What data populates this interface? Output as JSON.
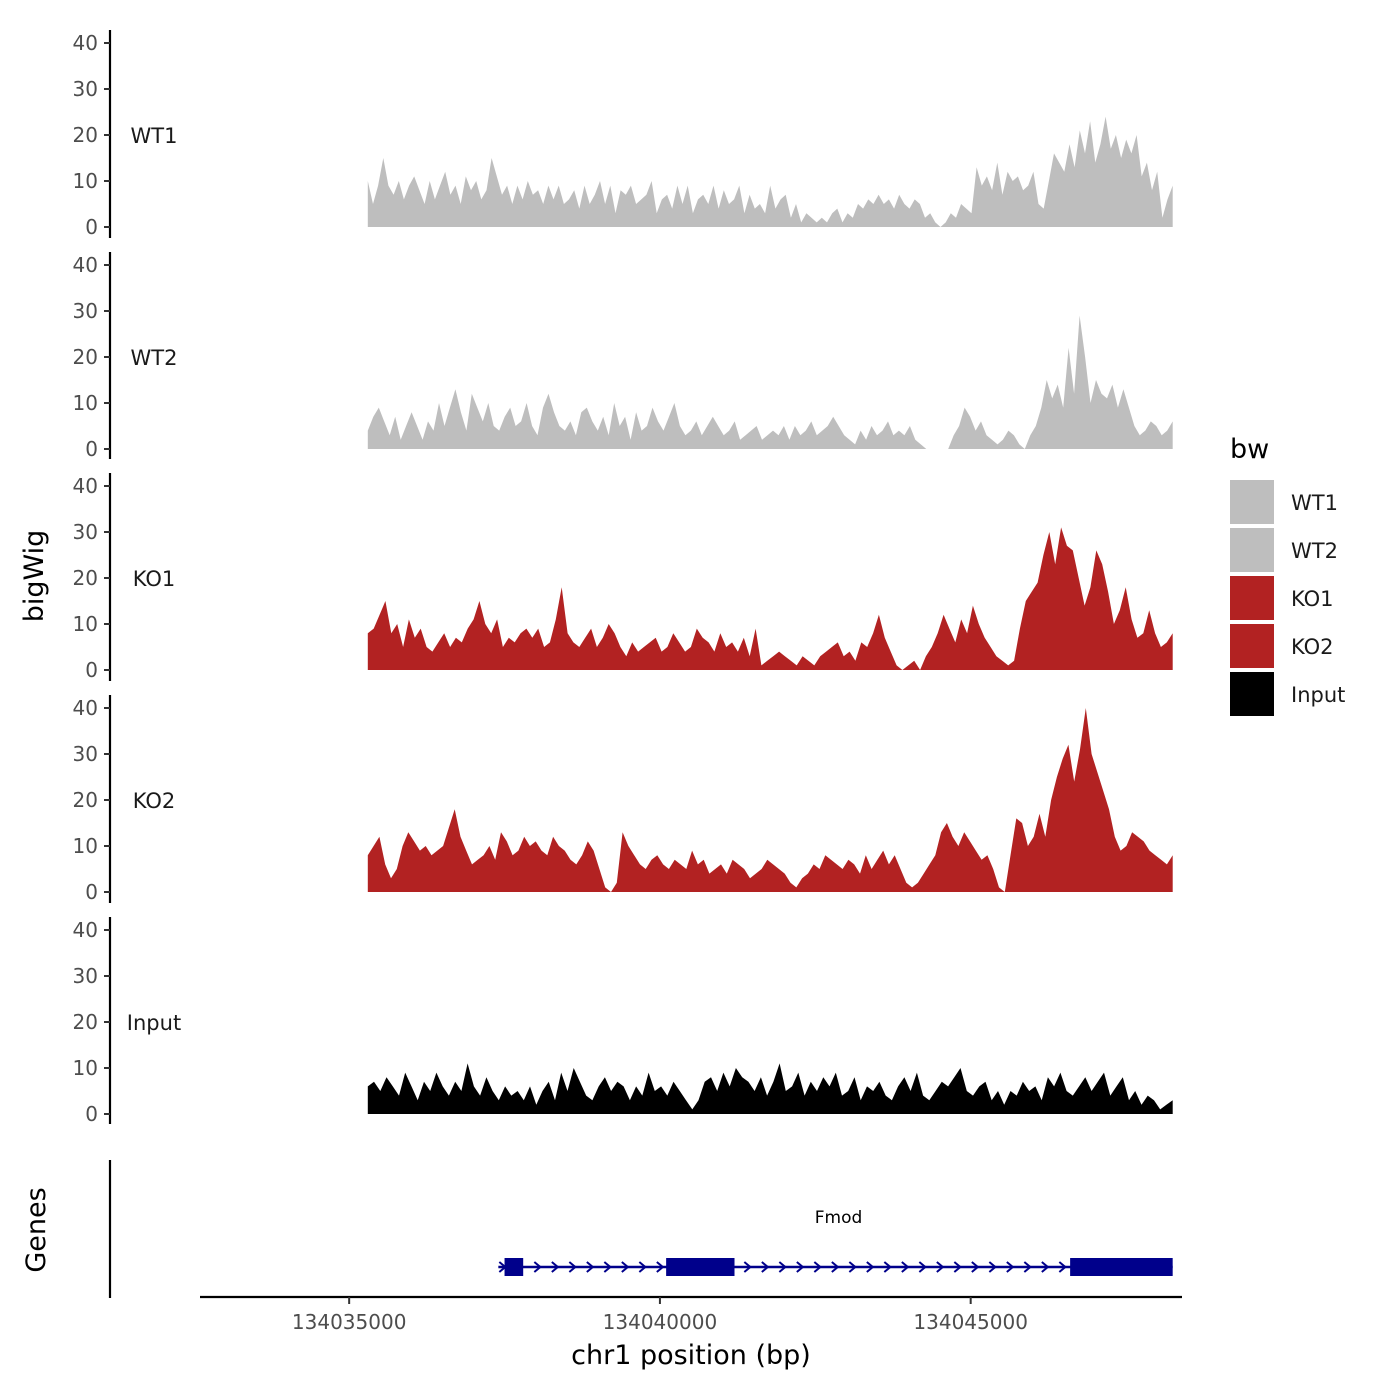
{
  "chart_data": {
    "type": "area",
    "chromosome": "chr1",
    "xlabel": "chr1 position (bp)",
    "ylabel_tracks": "bigWig",
    "ylabel_genes": "Genes",
    "xlim": [
      134032600,
      134048400
    ],
    "x_ticks": [
      134035000,
      134040000,
      134045000
    ],
    "x_tick_labels": [
      "134035000",
      "134040000",
      "134045000"
    ],
    "ylim": [
      0,
      41
    ],
    "y_ticks": [
      0,
      10,
      20,
      30,
      40
    ],
    "y_tick_labels": [
      "0",
      "10",
      "20",
      "30",
      "40"
    ],
    "legend_title": "bw",
    "legend": [
      {
        "label": "WT1",
        "color": "#bebebe"
      },
      {
        "label": "WT2",
        "color": "#bebebe"
      },
      {
        "label": "KO1",
        "color": "#b22222"
      },
      {
        "label": "KO2",
        "color": "#b22222"
      },
      {
        "label": "Input",
        "color": "#000000"
      }
    ],
    "series": [
      {
        "name": "WT1",
        "color": "#bebebe",
        "start": 134035300,
        "end": 134048250,
        "values": [
          10,
          5,
          9,
          15,
          9,
          7,
          10,
          6,
          9,
          11,
          8,
          5,
          10,
          6,
          9,
          12,
          7,
          9,
          5,
          11,
          8,
          10,
          6,
          8,
          15,
          11,
          7,
          9,
          5,
          9,
          6,
          10,
          7,
          8,
          5,
          9,
          6,
          9,
          5,
          6,
          8,
          4,
          9,
          5,
          7,
          10,
          5,
          9,
          3,
          8,
          7,
          9,
          5,
          6,
          7,
          10,
          3,
          6,
          7,
          4,
          9,
          5,
          9,
          3,
          6,
          7,
          5,
          9,
          4,
          8,
          5,
          6,
          9,
          3,
          7,
          4,
          5,
          3,
          9,
          4,
          6,
          7,
          2,
          5,
          1,
          3,
          2,
          1,
          2,
          1,
          3,
          4,
          1,
          3,
          2,
          5,
          4,
          6,
          5,
          7,
          5,
          6,
          4,
          7,
          5,
          4,
          6,
          5,
          2,
          3,
          1,
          0,
          1,
          3,
          2,
          5,
          4,
          3,
          13,
          9,
          11,
          8,
          14,
          7,
          12,
          10,
          11,
          8,
          9,
          12,
          5,
          4,
          10,
          16,
          14,
          12,
          18,
          13,
          21,
          16,
          23,
          14,
          18,
          24,
          17,
          20,
          15,
          19,
          16,
          20,
          11,
          14,
          8,
          12,
          2,
          6,
          9
        ]
      },
      {
        "name": "WT2",
        "color": "#bebebe",
        "start": 134035300,
        "end": 134048250,
        "values": [
          4,
          7,
          9,
          6,
          3,
          7,
          2,
          5,
          8,
          5,
          2,
          6,
          4,
          10,
          5,
          9,
          13,
          8,
          4,
          12,
          9,
          6,
          10,
          5,
          4,
          7,
          9,
          5,
          6,
          10,
          5,
          3,
          9,
          12,
          8,
          5,
          4,
          6,
          3,
          8,
          9,
          6,
          4,
          7,
          3,
          10,
          5,
          7,
          2,
          8,
          4,
          5,
          9,
          6,
          4,
          7,
          10,
          5,
          3,
          4,
          6,
          3,
          5,
          7,
          5,
          3,
          4,
          6,
          2,
          3,
          4,
          5,
          2,
          3,
          4,
          3,
          5,
          2,
          5,
          3,
          4,
          6,
          3,
          4,
          5,
          7,
          5,
          3,
          2,
          1,
          4,
          2,
          5,
          3,
          4,
          6,
          3,
          4,
          3,
          5,
          2,
          1,
          0,
          0,
          0,
          0,
          0,
          3,
          5,
          9,
          7,
          4,
          6,
          3,
          2,
          1,
          2,
          4,
          3,
          1,
          0,
          3,
          5,
          9,
          15,
          11,
          14,
          9,
          22,
          12,
          29,
          20,
          10,
          15,
          12,
          11,
          14,
          9,
          13,
          9,
          5,
          3,
          4,
          6,
          5,
          3,
          4,
          6
        ]
      },
      {
        "name": "KO1",
        "color": "#b22222",
        "start": 134035300,
        "end": 134048250,
        "values": [
          8,
          9,
          12,
          15,
          8,
          10,
          5,
          11,
          7,
          9,
          5,
          4,
          6,
          8,
          5,
          7,
          6,
          9,
          11,
          15,
          10,
          8,
          11,
          5,
          7,
          6,
          8,
          9,
          7,
          9,
          5,
          6,
          11,
          18,
          8,
          6,
          5,
          7,
          9,
          5,
          7,
          10,
          8,
          5,
          3,
          6,
          4,
          5,
          6,
          7,
          4,
          5,
          8,
          6,
          4,
          5,
          9,
          7,
          6,
          4,
          8,
          5,
          6,
          4,
          7,
          3,
          9,
          1,
          2,
          3,
          4,
          3,
          2,
          1,
          3,
          2,
          1,
          3,
          4,
          5,
          6,
          3,
          4,
          2,
          6,
          5,
          8,
          12,
          7,
          4,
          1,
          0,
          1,
          2,
          0,
          3,
          5,
          8,
          12,
          9,
          6,
          11,
          8,
          14,
          10,
          7,
          5,
          3,
          2,
          1,
          2,
          9,
          15,
          17,
          19,
          25,
          30,
          23,
          31,
          27,
          26,
          20,
          14,
          18,
          26,
          23,
          17,
          10,
          13,
          18,
          11,
          7,
          8,
          13,
          8,
          5,
          6,
          8
        ]
      },
      {
        "name": "KO2",
        "color": "#b22222",
        "start": 134035300,
        "end": 134048250,
        "values": [
          8,
          10,
          12,
          6,
          3,
          5,
          10,
          13,
          11,
          9,
          10,
          8,
          9,
          10,
          14,
          18,
          12,
          9,
          6,
          7,
          8,
          10,
          7,
          13,
          11,
          8,
          9,
          12,
          10,
          11,
          9,
          8,
          12,
          10,
          9,
          7,
          6,
          8,
          11,
          9,
          5,
          1,
          0,
          2,
          13,
          10,
          8,
          6,
          5,
          7,
          8,
          6,
          5,
          7,
          6,
          5,
          9,
          6,
          7,
          4,
          5,
          6,
          4,
          7,
          6,
          5,
          3,
          4,
          5,
          7,
          6,
          5,
          4,
          2,
          1,
          3,
          4,
          6,
          5,
          8,
          7,
          6,
          5,
          7,
          6,
          4,
          8,
          5,
          7,
          9,
          6,
          8,
          5,
          2,
          1,
          2,
          4,
          6,
          8,
          13,
          15,
          12,
          10,
          13,
          11,
          9,
          7,
          8,
          5,
          1,
          0,
          8,
          16,
          15,
          10,
          12,
          17,
          12,
          20,
          25,
          29,
          32,
          24,
          31,
          40,
          30,
          26,
          22,
          18,
          12,
          9,
          10,
          13,
          12,
          11,
          9,
          8,
          7,
          6,
          8
        ]
      },
      {
        "name": "Input",
        "color": "#000000",
        "start": 134035300,
        "end": 134048250,
        "values": [
          6,
          7,
          5,
          8,
          6,
          4,
          9,
          6,
          3,
          7,
          5,
          9,
          6,
          4,
          7,
          5,
          11,
          6,
          4,
          8,
          5,
          3,
          6,
          4,
          5,
          3,
          6,
          2,
          5,
          7,
          3,
          9,
          5,
          10,
          7,
          4,
          3,
          6,
          8,
          5,
          7,
          6,
          3,
          6,
          4,
          9,
          5,
          6,
          4,
          7,
          5,
          3,
          1,
          3,
          7,
          8,
          5,
          9,
          6,
          10,
          8,
          7,
          5,
          8,
          4,
          7,
          11,
          5,
          6,
          9,
          4,
          7,
          5,
          8,
          6,
          9,
          4,
          5,
          8,
          3,
          6,
          5,
          7,
          4,
          3,
          6,
          8,
          5,
          9,
          4,
          3,
          5,
          7,
          6,
          8,
          10,
          5,
          4,
          6,
          7,
          3,
          5,
          2,
          5,
          4,
          7,
          5,
          6,
          3,
          8,
          6,
          9,
          5,
          4,
          6,
          8,
          5,
          7,
          9,
          4,
          6,
          8,
          3,
          5,
          2,
          4,
          3,
          1,
          2,
          3
        ]
      }
    ],
    "genes": [
      {
        "name": "Fmod",
        "strand": "+",
        "start": 134037400,
        "end": 134048250,
        "exons": [
          [
            134037500,
            134037800
          ],
          [
            134040100,
            134041200
          ],
          [
            134046600,
            134048250
          ]
        ]
      }
    ]
  }
}
